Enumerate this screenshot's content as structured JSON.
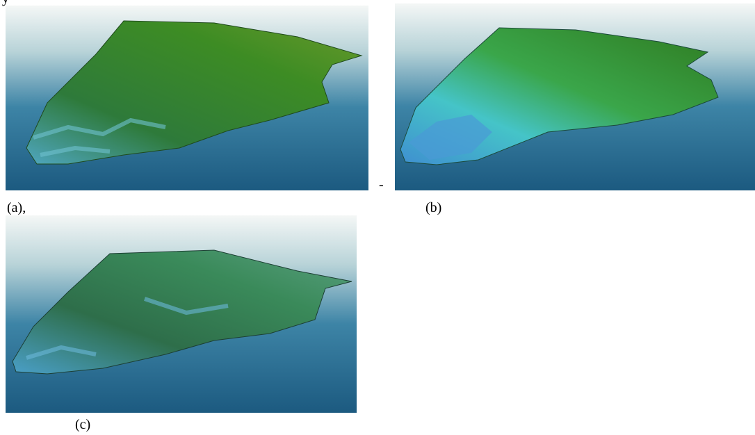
{
  "fragments": {
    "top": "y",
    "dash": "-"
  },
  "panels": [
    {
      "label": "(a),"
    },
    {
      "label": "(b)"
    },
    {
      "label": "(c)"
    }
  ]
}
